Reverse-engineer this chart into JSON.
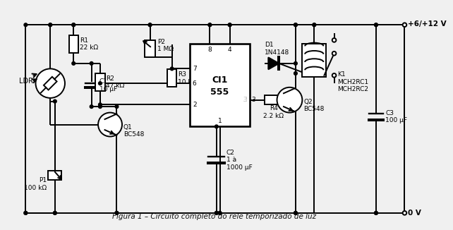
{
  "title": "Figura 1 – Circuito completo do relé temporizado de luz",
  "bg_color": "#ffffff",
  "line_color": "#000000",
  "lw": 1.4,
  "vcc_label": "+6/+12 V",
  "gnd_label": "0 V",
  "R1": "R1\n22 kΩ",
  "R2": "R2\n47 kΩ",
  "R3": "R3\n10 kΩ",
  "R4": "R4\n2.2 kΩ",
  "P1": "P1\n100 kΩ",
  "P2": "P2\n1 MΩ",
  "C1": "C1\n10 μF",
  "C2": "C2\n1 à\n1000 μF",
  "C3": "C3\n100 μF",
  "Q1": "Q1\nBC548",
  "Q2": "Q2\nBC548",
  "D1": "D1\n1N4148",
  "CI1": "CI1\n555",
  "K1": "K1\nMCH2RC1\nMCH2RC2",
  "LDR": "LDR"
}
